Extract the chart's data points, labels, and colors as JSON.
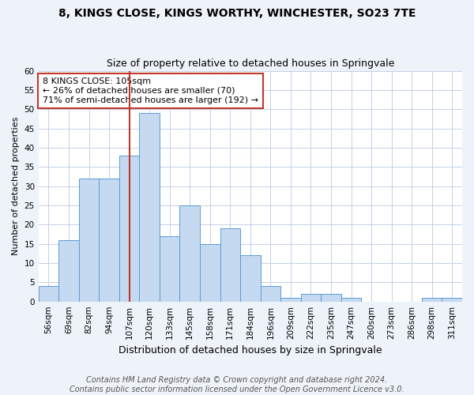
{
  "title": "8, KINGS CLOSE, KINGS WORTHY, WINCHESTER, SO23 7TE",
  "subtitle": "Size of property relative to detached houses in Springvale",
  "xlabel": "Distribution of detached houses by size in Springvale",
  "ylabel": "Number of detached properties",
  "footer_line1": "Contains HM Land Registry data © Crown copyright and database right 2024.",
  "footer_line2": "Contains public sector information licensed under the Open Government Licence v3.0.",
  "bin_labels": [
    "56sqm",
    "69sqm",
    "82sqm",
    "94sqm",
    "107sqm",
    "120sqm",
    "133sqm",
    "145sqm",
    "158sqm",
    "171sqm",
    "184sqm",
    "196sqm",
    "209sqm",
    "222sqm",
    "235sqm",
    "247sqm",
    "260sqm",
    "273sqm",
    "286sqm",
    "298sqm",
    "311sqm"
  ],
  "bar_values": [
    4,
    16,
    32,
    32,
    38,
    49,
    17,
    25,
    15,
    19,
    12,
    4,
    1,
    2,
    2,
    1,
    0,
    0,
    0,
    1,
    1
  ],
  "bar_color": "#c5d9f0",
  "bar_edge_color": "#5b9bd5",
  "vline_index": 4,
  "vline_color": "#c0392b",
  "annotation_line1": "8 KINGS CLOSE: 105sqm",
  "annotation_line2": "← 26% of detached houses are smaller (70)",
  "annotation_line3": "71% of semi-detached houses are larger (192) →",
  "annotation_box_color": "white",
  "annotation_box_edge_color": "#c0392b",
  "ylim": [
    0,
    60
  ],
  "yticks": [
    0,
    5,
    10,
    15,
    20,
    25,
    30,
    35,
    40,
    45,
    50,
    55,
    60
  ],
  "background_color": "#eef2f9",
  "plot_background_color": "white",
  "grid_color": "#c5d0e8",
  "title_fontsize": 10,
  "subtitle_fontsize": 9,
  "xlabel_fontsize": 9,
  "ylabel_fontsize": 8,
  "tick_fontsize": 7.5,
  "annotation_fontsize": 8,
  "footer_fontsize": 7
}
